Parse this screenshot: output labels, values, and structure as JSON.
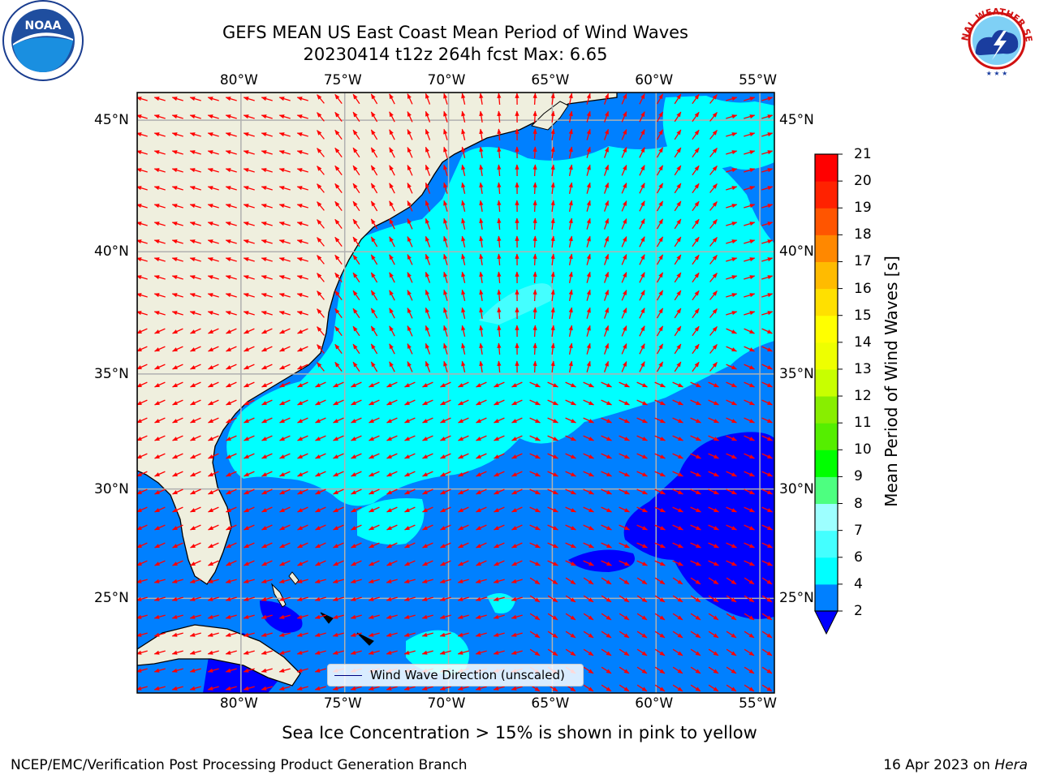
{
  "title_line1": "GEFS MEAN US East Coast Mean Period of Wind Waves",
  "title_line2": "20230414 t12z 264h fcst   Max: 6.65",
  "logos": {
    "left": "noaa-logo",
    "right": "national-weather-service-logo",
    "left_text": "NOAA",
    "right_text": "NATIONAL WEATHER SERVICE"
  },
  "map": {
    "lon_labels": [
      "80°W",
      "75°W",
      "70°W",
      "65°W",
      "60°W",
      "55°W"
    ],
    "lat_labels": [
      "45°N",
      "40°N",
      "35°N",
      "30°N",
      "25°N"
    ],
    "lon_values": [
      -80,
      -75,
      -70,
      -65,
      -60,
      -55
    ],
    "lat_values": [
      45,
      40,
      35,
      30,
      25
    ],
    "extent": {
      "lon": [
        -85,
        -54.3
      ],
      "lat": [
        20.5,
        46
      ]
    },
    "colors": {
      "land": "#efefde",
      "grid": "#b0b0b0",
      "arrow": "#ff0000",
      "coast": "#000000"
    }
  },
  "colorbar": {
    "title": "Mean Period of Wind Waves [s]",
    "ticks": [
      "21",
      "20",
      "19",
      "18",
      "17",
      "16",
      "15",
      "14",
      "13",
      "12",
      "11",
      "10",
      "9",
      "8",
      "7",
      "6",
      "4",
      "2"
    ],
    "levels": [
      2,
      4,
      6,
      7,
      8,
      9,
      10,
      11,
      12,
      13,
      14,
      15,
      16,
      17,
      18,
      19,
      20,
      21
    ],
    "colors": [
      "#0080ff",
      "#00ffff",
      "#44ffff",
      "#9dffff",
      "#4dff80",
      "#00ff00",
      "#55ee00",
      "#88ee00",
      "#c8ff00",
      "#eeff00",
      "#ffff00",
      "#ffe000",
      "#ffbb00",
      "#ff8800",
      "#ff5500",
      "#ff2200",
      "#ff0000"
    ],
    "under_color": "#0000ff"
  },
  "legend": {
    "label": "Wind Wave Direction (unscaled)"
  },
  "note": "Sea Ice Concentration > 15% is shown in pink to yellow",
  "footer_left": "NCEP/EMC/Verification Post Processing Product Generation Branch",
  "footer_date": "16 Apr 2023 on",
  "footer_machine": "Hera"
}
